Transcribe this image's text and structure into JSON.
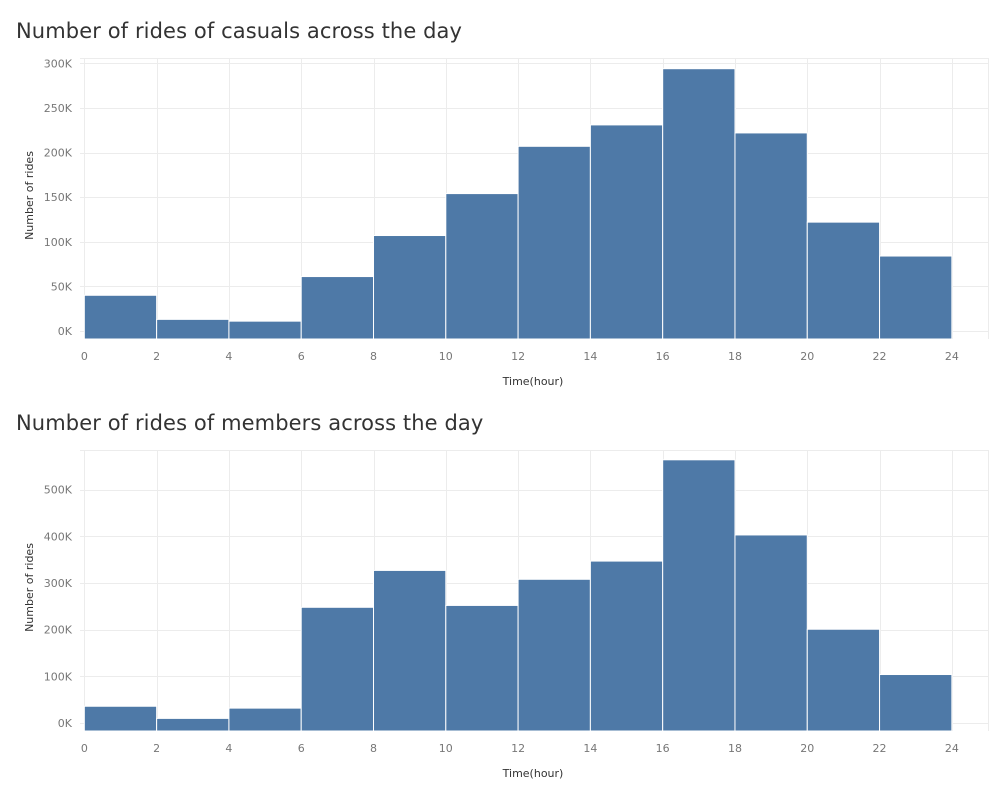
{
  "charts": [
    {
      "title": "Number of rides of casuals across the day",
      "chart_data": {
        "type": "bar",
        "title": "Number of rides of casuals across the day",
        "xlabel": "Time(hour)",
        "ylabel": "Number of rides",
        "x_bins": [
          [
            0,
            2
          ],
          [
            2,
            4
          ],
          [
            4,
            6
          ],
          [
            6,
            8
          ],
          [
            8,
            10
          ],
          [
            10,
            12
          ],
          [
            12,
            14
          ],
          [
            14,
            16
          ],
          [
            16,
            18
          ],
          [
            18,
            20
          ],
          [
            20,
            22
          ],
          [
            22,
            24
          ]
        ],
        "values": [
          40000,
          13000,
          11000,
          61000,
          107000,
          154000,
          207000,
          231000,
          294000,
          222000,
          122000,
          84000
        ],
        "x_ticks": [
          "0",
          "2",
          "4",
          "6",
          "8",
          "10",
          "12",
          "14",
          "16",
          "18",
          "20",
          "22",
          "24"
        ],
        "y_ticks": [
          0,
          50000,
          100000,
          150000,
          200000,
          250000,
          300000
        ],
        "y_tick_labels": [
          "0K",
          "50K",
          "100K",
          "150K",
          "200K",
          "250K",
          "300K"
        ],
        "ylim": [
          -9000,
          306000
        ],
        "xlim": [
          -0.12,
          25.0
        ],
        "grid": true,
        "bar_color": "#4e79a7"
      }
    },
    {
      "title": "Number of rides of members across the day",
      "chart_data": {
        "type": "bar",
        "title": "Number of rides of members across the day",
        "xlabel": "Time(hour)",
        "ylabel": "Number of rides",
        "x_bins": [
          [
            0,
            2
          ],
          [
            2,
            4
          ],
          [
            4,
            6
          ],
          [
            6,
            8
          ],
          [
            8,
            10
          ],
          [
            10,
            12
          ],
          [
            12,
            14
          ],
          [
            14,
            16
          ],
          [
            16,
            18
          ],
          [
            18,
            20
          ],
          [
            20,
            22
          ],
          [
            22,
            24
          ]
        ],
        "values": [
          36000,
          10000,
          32000,
          248000,
          327000,
          252000,
          308000,
          347000,
          564000,
          403000,
          201000,
          104000
        ],
        "x_ticks": [
          "0",
          "2",
          "4",
          "6",
          "8",
          "10",
          "12",
          "14",
          "16",
          "18",
          "20",
          "22",
          "24"
        ],
        "y_ticks": [
          0,
          100000,
          200000,
          300000,
          400000,
          500000
        ],
        "y_tick_labels": [
          "0K",
          "100K",
          "200K",
          "300K",
          "400K",
          "500K"
        ],
        "ylim": [
          -17000,
          585000
        ],
        "xlim": [
          -0.12,
          25.0
        ],
        "grid": true,
        "bar_color": "#4e79a7"
      }
    }
  ]
}
